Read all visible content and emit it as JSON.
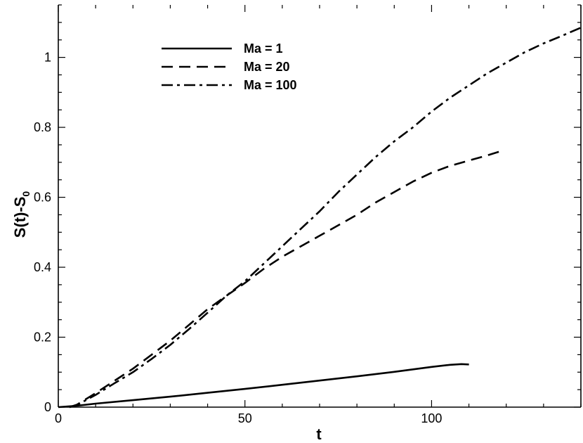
{
  "chart_data": {
    "type": "line",
    "title": "",
    "xlabel": "t",
    "ylabel_main": "S(t)-S",
    "ylabel_sub": "0",
    "xlim": [
      0,
      140
    ],
    "ylim": [
      0,
      1.15
    ],
    "xticks": [
      0,
      50,
      100
    ],
    "xtick_labels": [
      "0",
      "50",
      "100"
    ],
    "yticks": [
      0,
      0.2,
      0.4,
      0.6,
      0.8,
      1
    ],
    "ytick_labels": [
      "0",
      "0.2",
      "0.4",
      "0.6",
      "0.8",
      "1"
    ],
    "grid": false,
    "legend_position": "top-left",
    "series": [
      {
        "name": "Ma = 1",
        "dash": "solid",
        "x": [
          0,
          5,
          10,
          20,
          30,
          40,
          50,
          60,
          70,
          80,
          90,
          100,
          105,
          108,
          110
        ],
        "y": [
          0,
          0.004,
          0.01,
          0.02,
          0.03,
          0.041,
          0.052,
          0.064,
          0.076,
          0.088,
          0.101,
          0.115,
          0.121,
          0.123,
          0.122
        ]
      },
      {
        "name": "Ma = 20",
        "dash": "dash",
        "x": [
          3,
          5,
          10,
          15,
          20,
          25,
          30,
          35,
          40,
          45,
          50,
          55,
          60,
          65,
          70,
          75,
          80,
          85,
          90,
          95,
          100,
          105,
          110,
          115,
          118
        ],
        "y": [
          0,
          0.007,
          0.04,
          0.075,
          0.11,
          0.15,
          0.19,
          0.235,
          0.28,
          0.318,
          0.355,
          0.395,
          0.43,
          0.46,
          0.49,
          0.52,
          0.55,
          0.585,
          0.615,
          0.645,
          0.67,
          0.69,
          0.705,
          0.72,
          0.73
        ]
      },
      {
        "name": "Ma = 100",
        "dash": "dashdot",
        "x": [
          3,
          5,
          10,
          15,
          20,
          25,
          30,
          35,
          40,
          45,
          50,
          55,
          60,
          65,
          70,
          75,
          80,
          85,
          90,
          95,
          100,
          105,
          110,
          115,
          120,
          125,
          130,
          135,
          140
        ],
        "y": [
          0,
          0.006,
          0.035,
          0.068,
          0.1,
          0.138,
          0.178,
          0.223,
          0.27,
          0.318,
          0.36,
          0.41,
          0.46,
          0.51,
          0.56,
          0.615,
          0.665,
          0.715,
          0.76,
          0.8,
          0.845,
          0.885,
          0.92,
          0.955,
          0.985,
          1.015,
          1.04,
          1.062,
          1.085
        ]
      }
    ]
  }
}
